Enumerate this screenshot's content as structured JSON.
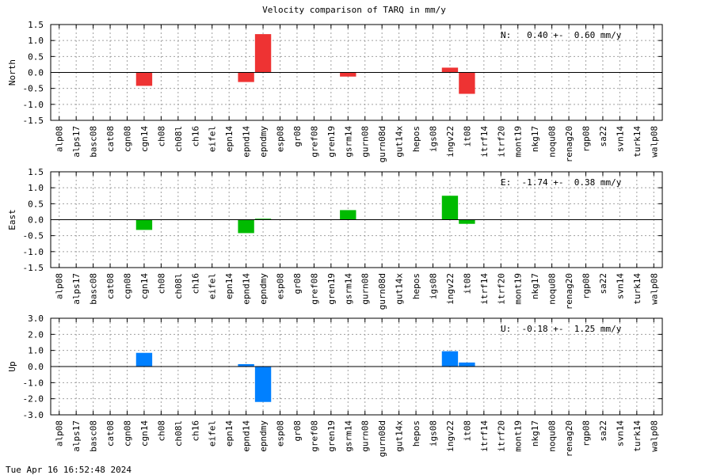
{
  "title": "Velocity comparison of TARQ in mm/y",
  "timestamp": "Tue Apr 16 16:52:48 2024",
  "chart_data": [
    {
      "type": "bar",
      "ylabel": "North",
      "ylim": [
        -1.5,
        1.5
      ],
      "yticks": [
        "1.5",
        "1.0",
        "0.5",
        "0.0",
        "-0.5",
        "-1.0",
        "-1.5"
      ],
      "ytick_values": [
        1.5,
        1.0,
        0.5,
        0.0,
        -0.5,
        -1.0,
        -1.5
      ],
      "annotation": "N:   0.40 +-  0.60 mm/y",
      "color": "#ee3333",
      "grid": true,
      "categories": [
        "alp08",
        "alps17",
        "basc08",
        "cat08",
        "cgn08",
        "cgn14",
        "ch08",
        "ch08l",
        "ch16",
        "eifel",
        "epn14",
        "epnd14",
        "epndmy",
        "esp08",
        "gr08",
        "gref08",
        "gren19",
        "gsrm14",
        "gurn08",
        "gurn08d",
        "gut14x",
        "hepos",
        "igs08",
        "ingv22",
        "it08",
        "itrf14",
        "itrf20",
        "mont19",
        "nkg17",
        "noqu08",
        "renag20",
        "rgp08",
        "sa22",
        "svn14",
        "turk14",
        "walp08"
      ],
      "values": [
        0,
        0,
        0,
        0,
        0,
        -0.42,
        0,
        0,
        0,
        0,
        0,
        -0.3,
        1.2,
        0,
        0,
        0,
        0,
        -0.13,
        0,
        0,
        0,
        0,
        0,
        0.15,
        -0.67,
        0,
        0,
        0,
        0,
        0,
        0,
        0,
        0,
        0,
        0,
        0
      ]
    },
    {
      "type": "bar",
      "ylabel": "East",
      "ylim": [
        -1.5,
        1.5
      ],
      "yticks": [
        "1.5",
        "1.0",
        "0.5",
        "0.0",
        "-0.5",
        "-1.0",
        "-1.5"
      ],
      "ytick_values": [
        1.5,
        1.0,
        0.5,
        0.0,
        -0.5,
        -1.0,
        -1.5
      ],
      "annotation": "E:  -1.74 +-  0.38 mm/y",
      "color": "#00bb00",
      "grid": true,
      "categories": [
        "alp08",
        "alps17",
        "basc08",
        "cat08",
        "cgn08",
        "cgn14",
        "ch08",
        "ch08l",
        "ch16",
        "eifel",
        "epn14",
        "epnd14",
        "epndmy",
        "esp08",
        "gr08",
        "gref08",
        "gren19",
        "gsrm14",
        "gurn08",
        "gurn08d",
        "gut14x",
        "hepos",
        "igs08",
        "ingv22",
        "it08",
        "itrf14",
        "itrf20",
        "mont19",
        "nkg17",
        "noqu08",
        "renag20",
        "rgp08",
        "sa22",
        "svn14",
        "turk14",
        "walp08"
      ],
      "values": [
        0,
        0,
        0,
        0,
        0,
        -0.32,
        0,
        0,
        0,
        0,
        0,
        -0.42,
        0.03,
        0,
        0,
        0,
        0,
        0.3,
        0,
        0,
        0,
        0,
        0,
        0.75,
        -0.13,
        0,
        0,
        0,
        0,
        0,
        0,
        0,
        0,
        0,
        0,
        0
      ]
    },
    {
      "type": "bar",
      "ylabel": "Up",
      "ylim": [
        -3.0,
        3.0
      ],
      "yticks": [
        "3.0",
        "2.0",
        "1.0",
        "0.0",
        "-1.0",
        "-2.0",
        "-3.0"
      ],
      "ytick_values": [
        3.0,
        2.0,
        1.0,
        0.0,
        -1.0,
        -2.0,
        -3.0
      ],
      "annotation": "U:  -0.18 +-  1.25 mm/y",
      "color": "#0080ff",
      "grid": true,
      "categories": [
        "alp08",
        "alps17",
        "basc08",
        "cat08",
        "cgn08",
        "cgn14",
        "ch08",
        "ch08l",
        "ch16",
        "eifel",
        "epn14",
        "epnd14",
        "epndmy",
        "esp08",
        "gr08",
        "gref08",
        "gren19",
        "gsrm14",
        "gurn08",
        "gurn08d",
        "gut14x",
        "hepos",
        "igs08",
        "ingv22",
        "it08",
        "itrf14",
        "itrf20",
        "mont19",
        "nkg17",
        "noqu08",
        "renag20",
        "rgp08",
        "sa22",
        "svn14",
        "turk14",
        "walp08"
      ],
      "values": [
        0,
        0,
        0,
        0,
        0,
        0.85,
        0,
        0,
        0,
        0,
        0,
        0.15,
        -2.2,
        0,
        0,
        0,
        0,
        0,
        0,
        0,
        0,
        0,
        0,
        0.95,
        0.25,
        0,
        0,
        0,
        0,
        0,
        0,
        0,
        0,
        0,
        0,
        0
      ]
    }
  ]
}
